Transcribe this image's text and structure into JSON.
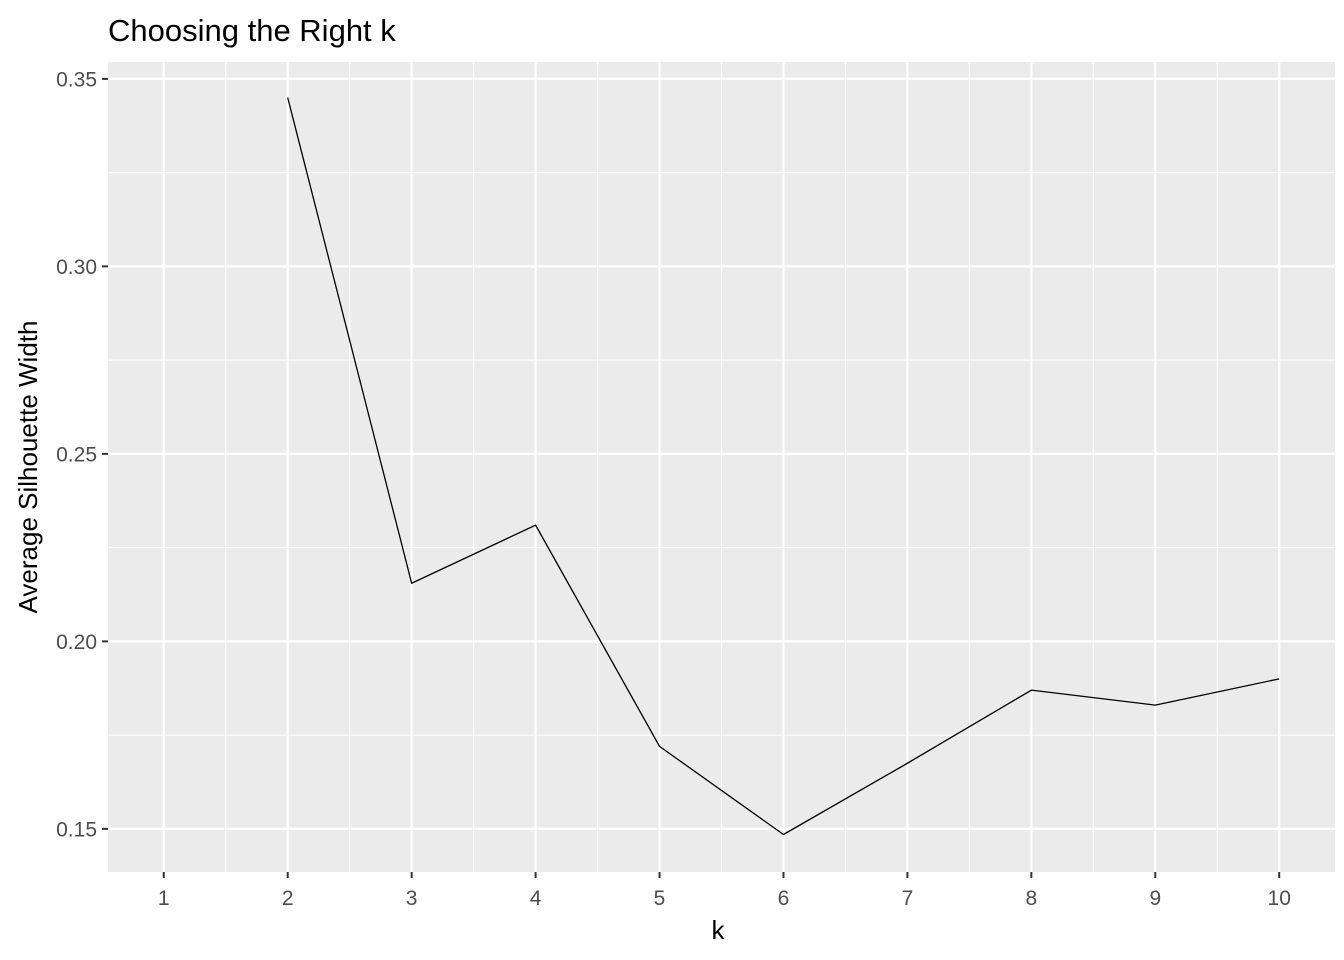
{
  "chart_data": {
    "type": "line",
    "title": "Choosing the Right k",
    "xlabel": "k",
    "ylabel": "Average Silhouette Width",
    "x": [
      1,
      2,
      3,
      4,
      5,
      6,
      7,
      8,
      9,
      10
    ],
    "x_tick_labels": [
      "1",
      "2",
      "3",
      "4",
      "5",
      "6",
      "7",
      "8",
      "9",
      "10"
    ],
    "y_ticks": [
      0.15,
      0.2,
      0.25,
      0.3,
      0.35
    ],
    "y_tick_labels": [
      "0.15",
      "0.20",
      "0.25",
      "0.30",
      "0.35"
    ],
    "xlim": [
      0.55,
      10.45
    ],
    "ylim": [
      0.1385,
      0.3545
    ],
    "series": [
      {
        "x": [
          2,
          3,
          4,
          5,
          6,
          7,
          8,
          9,
          10
        ],
        "values": [
          0.345,
          0.2155,
          0.231,
          0.172,
          0.1485,
          0.1675,
          0.187,
          0.183,
          0.19
        ],
        "color": "#000000"
      }
    ],
    "grid": true,
    "minor_grid": true,
    "panel_background": "#ebebeb",
    "grid_color": "#ffffff",
    "tick_label_color": "#4d4d4d",
    "legend": "none"
  }
}
